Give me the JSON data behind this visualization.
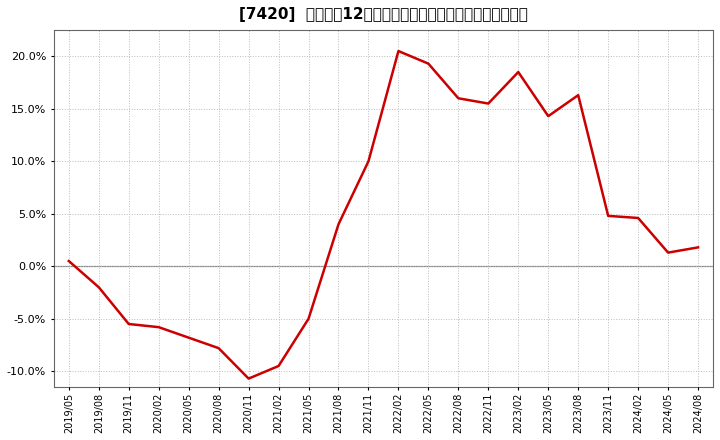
{
  "title": "[7420]  売上高の12か月移動合計の対前年同期増減率の推移",
  "line_color": "#cc0000",
  "background_color": "#ffffff",
  "plot_bg_color": "#ffffff",
  "grid_color": "#bbbbbb",
  "zero_line_color": "#888888",
  "ylim": [
    -0.115,
    0.225
  ],
  "yticks": [
    -0.1,
    -0.05,
    0.0,
    0.05,
    0.1,
    0.15,
    0.2
  ],
  "dates": [
    "2019/05",
    "2019/08",
    "2019/11",
    "2020/02",
    "2020/05",
    "2020/08",
    "2020/11",
    "2021/02",
    "2021/05",
    "2021/08",
    "2021/11",
    "2022/02",
    "2022/05",
    "2022/08",
    "2022/11",
    "2023/02",
    "2023/05",
    "2023/08",
    "2023/11",
    "2024/02",
    "2024/05",
    "2024/08"
  ],
  "values": [
    0.005,
    -0.02,
    -0.055,
    -0.058,
    -0.068,
    -0.078,
    -0.107,
    -0.095,
    -0.05,
    0.04,
    0.1,
    0.205,
    0.193,
    0.16,
    0.155,
    0.185,
    0.143,
    0.163,
    0.048,
    0.046,
    0.013,
    0.018
  ],
  "title_fontsize": 11,
  "tick_fontsize": 8,
  "line_width": 1.8
}
